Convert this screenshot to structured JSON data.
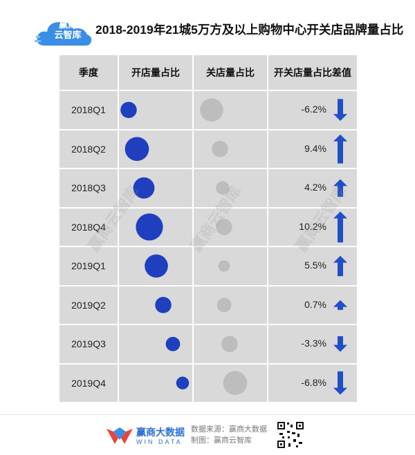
{
  "header": {
    "logo_text": "赢商\n云智库",
    "title": "2018-2019年21城5万方及以上购物中心开关店品牌量占比"
  },
  "table": {
    "columns": [
      "季度",
      "开店量占比",
      "关店量占比",
      "开关店量占比差值"
    ]
  },
  "watermark_text": "赢商云智库",
  "chart_data": {
    "type": "table",
    "title": "2018-2019年21城5万方及以上购物中心开关店品牌量占比",
    "categories": [
      "2018Q1",
      "2018Q2",
      "2018Q3",
      "2018Q4",
      "2019Q1",
      "2019Q2",
      "2019Q3",
      "2019Q4"
    ],
    "category_labels": [
      "2018Q1",
      "2018Q2",
      "2018Q3",
      "2018Q4",
      "2019Q1",
      "2019Q2",
      "2019Q3",
      "2019Q4"
    ],
    "series": [
      {
        "name": "开店量占比",
        "relative_size": [
          0.42,
          0.62,
          0.55,
          0.7,
          0.6,
          0.42,
          0.37,
          0.33
        ],
        "color": "#1f3fbf"
      },
      {
        "name": "关店量占比",
        "relative_size": [
          0.6,
          0.42,
          0.35,
          0.42,
          0.3,
          0.37,
          0.42,
          0.62
        ],
        "color": "#bdbdbd"
      }
    ],
    "difference": {
      "name": "开关店量占比差值",
      "values": [
        -6.2,
        9.4,
        4.2,
        10.2,
        5.5,
        0.7,
        -3.3,
        -6.8
      ],
      "labels": [
        "-6.2%",
        "9.4%",
        "4.2%",
        "10.2%",
        "5.5%",
        "0.7%",
        "-3.3%",
        "-6.8%"
      ],
      "up_color": "#1f4fc8",
      "down_color": "#1f4fc8"
    }
  },
  "footer": {
    "brand_name": "赢商大数据",
    "brand_sub": "WIN DATA",
    "source_line1": "数据来源：赢商大数据",
    "source_line2": "制图：赢商云智库"
  }
}
